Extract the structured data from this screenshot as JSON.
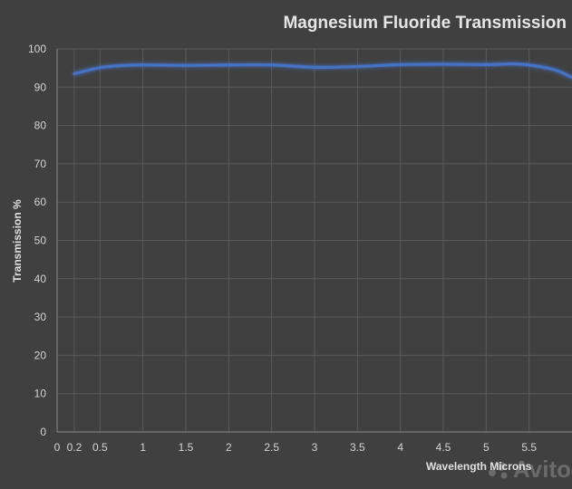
{
  "chart_data": {
    "type": "line",
    "title": "Magnesium Fluoride Transmission",
    "xlabel": "Wavelength Microns",
    "ylabel": "Transmission %",
    "xlim": [
      0,
      6.0
    ],
    "ylim": [
      0,
      100
    ],
    "x_ticks": [
      "0",
      "0.2",
      "0.5",
      "1",
      "1.5",
      "2",
      "2.5",
      "3",
      "3.5",
      "4",
      "4.5",
      "5",
      "5.5"
    ],
    "y_ticks": [
      "0",
      "10",
      "20",
      "30",
      "40",
      "50",
      "60",
      "70",
      "80",
      "90",
      "100"
    ],
    "grid": "both",
    "legend": "none",
    "series": [
      {
        "color": "#4472c4",
        "x": [
          0.2,
          0.5,
          0.8,
          1.0,
          1.5,
          2.0,
          2.5,
          3.0,
          3.5,
          4.0,
          4.5,
          5.0,
          5.3,
          5.5,
          5.8,
          6.0
        ],
        "y": [
          93.5,
          95.1,
          95.7,
          95.8,
          95.7,
          95.8,
          95.8,
          95.2,
          95.4,
          95.9,
          96.0,
          95.9,
          96.1,
          95.8,
          94.5,
          92.5
        ]
      }
    ]
  },
  "watermark": {
    "text": "Avito"
  }
}
